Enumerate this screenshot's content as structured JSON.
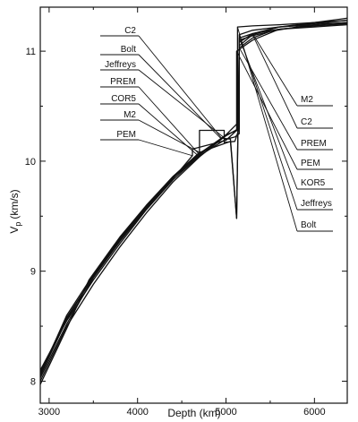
{
  "chart_data": {
    "type": "line",
    "title": "",
    "xlabel": "Depth (km)",
    "ylabel_main": "V",
    "ylabel_sub": "p",
    "ylabel_units": "(km/s)",
    "xlim": [
      2900,
      6371
    ],
    "ylim": [
      7.8,
      11.4
    ],
    "x_ticks": [
      3000,
      4000,
      5000,
      6000
    ],
    "y_ticks": [
      8,
      9,
      10,
      11
    ],
    "grid": false,
    "left_labels": [
      "C2",
      "Bolt",
      "Jeffreys",
      "PREM",
      "COR5",
      "M2",
      "PEM"
    ],
    "right_labels": [
      "M2",
      "C2",
      "PREM",
      "PEM",
      "KOR5",
      "Jeffreys",
      "Bolt"
    ],
    "series": [
      {
        "name": "PREM",
        "x": [
          2900,
          3200,
          3500,
          3800,
          4100,
          4400,
          4700,
          5000,
          5150,
          5150,
          5300,
          5500,
          5800,
          6100,
          6371
        ],
        "y": [
          8.06,
          8.6,
          8.97,
          9.3,
          9.59,
          9.85,
          10.06,
          10.24,
          10.36,
          11.03,
          11.12,
          11.18,
          11.22,
          11.25,
          11.26
        ]
      },
      {
        "name": "PEM",
        "x": [
          2900,
          3200,
          3500,
          3800,
          4100,
          4400,
          4620,
          4620,
          5000,
          5120,
          5120,
          5300,
          5600,
          6000,
          6371
        ],
        "y": [
          8.08,
          8.58,
          8.95,
          9.28,
          9.58,
          9.84,
          10.05,
          10.11,
          10.19,
          10.28,
          11.0,
          11.1,
          11.2,
          11.22,
          11.24
        ]
      },
      {
        "name": "Jeffreys",
        "x": [
          2900,
          3200,
          3500,
          3800,
          4100,
          4400,
          4700,
          5000,
          5100,
          5150,
          5150,
          5300,
          5600,
          6000,
          6371
        ],
        "y": [
          8.1,
          8.55,
          8.92,
          9.25,
          9.56,
          9.83,
          10.05,
          10.2,
          10.22,
          10.25,
          11.15,
          11.19,
          11.22,
          11.24,
          11.26
        ]
      },
      {
        "name": "Bolt",
        "x": [
          2900,
          3200,
          3500,
          3800,
          4100,
          4400,
          4700,
          4950,
          5000,
          5130,
          5130,
          5300,
          5600,
          6000,
          6371
        ],
        "y": [
          8.0,
          8.5,
          8.88,
          9.22,
          9.53,
          9.81,
          10.04,
          10.2,
          10.24,
          10.28,
          11.22,
          11.23,
          11.24,
          11.26,
          11.28
        ]
      },
      {
        "name": "C2",
        "x": [
          2900,
          3200,
          3500,
          3800,
          4100,
          4400,
          4700,
          4950,
          5050,
          5120,
          5150,
          5300,
          5600,
          6000,
          6371
        ],
        "y": [
          8.05,
          8.56,
          8.96,
          9.29,
          9.59,
          9.86,
          10.07,
          10.21,
          10.2,
          9.48,
          11.05,
          11.15,
          11.22,
          11.26,
          11.3
        ]
      },
      {
        "name": "M2",
        "x": [
          2900,
          3200,
          3450,
          3800,
          4100,
          4400,
          4700,
          5050,
          5120,
          5150,
          5300,
          5600,
          6000,
          6371
        ],
        "y": [
          7.97,
          8.48,
          8.92,
          9.31,
          9.6,
          9.86,
          10.08,
          10.18,
          9.48,
          11.08,
          11.16,
          11.22,
          11.25,
          11.28
        ]
      },
      {
        "name": "COR5",
        "x": [
          2900,
          3200,
          3500,
          3800,
          4100,
          4400,
          4700,
          4700,
          4980,
          4980,
          5100,
          5150,
          5150,
          5300,
          5600,
          6000,
          6371
        ],
        "y": [
          8.03,
          8.52,
          8.94,
          9.27,
          9.57,
          9.85,
          10.04,
          10.28,
          10.28,
          10.17,
          10.18,
          10.3,
          11.1,
          11.14,
          11.2,
          11.23,
          11.25
        ]
      },
      {
        "name": "KOR5",
        "x": [
          2900,
          3200,
          3500,
          3800,
          4100,
          4400,
          4700,
          5000,
          5150,
          5150,
          5300,
          5600,
          6000,
          6371
        ],
        "y": [
          8.07,
          8.57,
          8.95,
          9.28,
          9.58,
          9.85,
          10.06,
          10.23,
          10.3,
          11.12,
          11.16,
          11.2,
          11.23,
          11.25
        ]
      }
    ]
  }
}
